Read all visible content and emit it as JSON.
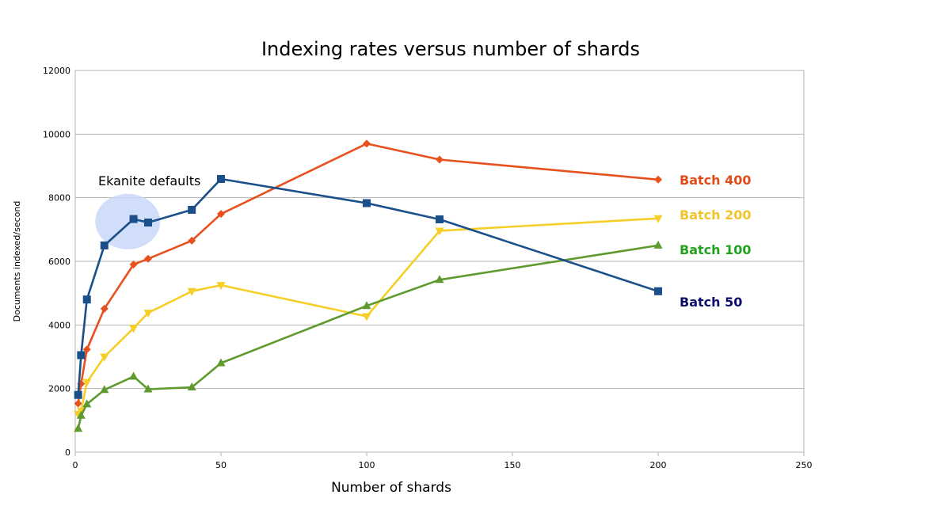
{
  "chart_data": {
    "type": "line",
    "title": "Indexing rates versus number of shards",
    "xlabel": "Number of shards",
    "ylabel": "Documents indexed/second",
    "xlim": [
      0,
      250
    ],
    "ylim": [
      0,
      12000
    ],
    "xticks": [
      0,
      50,
      100,
      150,
      200,
      250
    ],
    "yticks": [
      0,
      2000,
      4000,
      6000,
      8000,
      10000,
      12000
    ],
    "grid": "horizontal",
    "series": [
      {
        "name": "Batch 400",
        "color": "#e8501e",
        "marker": "diamond",
        "x": [
          1,
          2,
          4,
          10,
          20,
          25,
          40,
          50,
          100,
          125,
          200
        ],
        "y": [
          1530,
          2150,
          3230,
          4510,
          5900,
          6080,
          6650,
          7490,
          9700,
          9200,
          8570
        ]
      },
      {
        "name": "Batch 200",
        "color": "#f5cf28",
        "marker": "triangle-down",
        "x": [
          1,
          2,
          4,
          10,
          20,
          25,
          40,
          50,
          100,
          125,
          200
        ],
        "y": [
          1200,
          1300,
          2200,
          3000,
          3900,
          4380,
          5060,
          5250,
          4270,
          6960,
          7350
        ]
      },
      {
        "name": "Batch 100",
        "color": "#5e9a2e",
        "marker": "triangle-up",
        "x": [
          1,
          2,
          4,
          10,
          20,
          25,
          40,
          50,
          100,
          125,
          200
        ],
        "y": [
          740,
          1150,
          1510,
          1960,
          2380,
          1980,
          2040,
          2800,
          4600,
          5420,
          6500
        ]
      },
      {
        "name": "Batch 50",
        "color": "#1a4f8a",
        "marker": "square",
        "x": [
          1,
          2,
          4,
          10,
          20,
          25,
          40,
          50,
          100,
          125,
          200
        ],
        "y": [
          1800,
          3050,
          4800,
          6500,
          7330,
          7220,
          7620,
          8590,
          7830,
          7320,
          5060
        ]
      }
    ],
    "series_label_colors": {
      "Batch 400": "#e04b16",
      "Batch 200": "#f0c52a",
      "Batch 100": "#22a11e",
      "Batch 50": "#0c0c6e"
    },
    "annotation": {
      "text": "Ekanite defaults",
      "x": 18,
      "y": 7250,
      "highlight_color": "#c6d6f7"
    }
  }
}
